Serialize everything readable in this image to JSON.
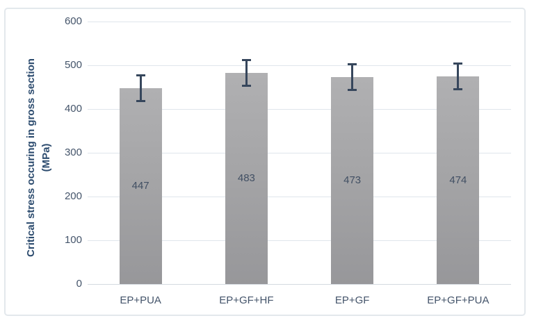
{
  "chart_data": {
    "type": "bar",
    "categories": [
      "EP+PUA",
      "EP+GF+HF",
      "EP+GF",
      "EP+GF+PUA"
    ],
    "values": [
      447,
      483,
      473,
      474
    ],
    "data_labels": [
      "447",
      "483",
      "473",
      "474"
    ],
    "error_bars_plus_minus": [
      30,
      30,
      30,
      30
    ],
    "ylabel": "Critical stress occuring in gross section (MPa)",
    "ylabel_lines": [
      "Critical stress occuring in gross section",
      "(MPa)"
    ],
    "ylim": [
      0,
      600
    ],
    "yticks": [
      0,
      100,
      200,
      300,
      400,
      500,
      600
    ],
    "xlabel": "",
    "grid": true,
    "legend": "none",
    "colors": {
      "bar_gradient_top": "#b0b0b2",
      "bar_gradient_bottom": "#97979a",
      "error_bar": "#36465c",
      "gridline": "#dfe6ec",
      "axis_line": "#d4dadf",
      "tick_label": "#44546a",
      "data_label": "#414f63",
      "axis_title": "#2c4b6e",
      "chart_border": "#e3e8ec",
      "background": "#ffffff"
    }
  }
}
